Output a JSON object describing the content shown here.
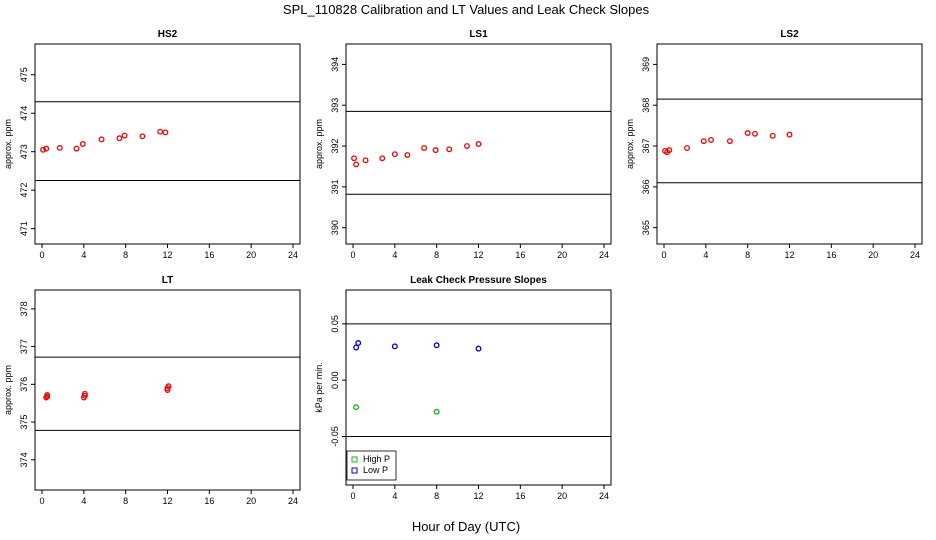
{
  "title": "SPL_110828  Calibration and LT Values and Leak Check Slopes",
  "xlabel": "Hour of Day (UTC)",
  "colors": {
    "red": "#ee0000",
    "green": "#00bb00",
    "blue": "#0000cc",
    "line": "#000000"
  },
  "chart_data": [
    {
      "type": "scatter",
      "title": "HS2",
      "ylabel": "approx. ppm",
      "xlim": [
        0,
        24
      ],
      "ylim": [
        470.6,
        475.8
      ],
      "xticks": [
        0,
        4,
        8,
        12,
        16,
        20,
        24
      ],
      "yticks": [
        471,
        472,
        473,
        474,
        475
      ],
      "hlines": [
        474.3,
        472.25
      ],
      "series": [
        {
          "color": "red",
          "x": [
            0.1,
            0.4,
            1.7,
            3.3,
            3.9,
            5.7,
            7.4,
            7.9,
            9.6,
            11.3,
            11.8
          ],
          "y": [
            473.05,
            473.08,
            473.1,
            473.08,
            473.2,
            473.32,
            473.35,
            473.42,
            473.4,
            473.52,
            473.5
          ]
        }
      ]
    },
    {
      "type": "scatter",
      "title": "LS1",
      "ylabel": "approx. ppm",
      "xlim": [
        0,
        24
      ],
      "ylim": [
        389.6,
        394.5
      ],
      "xticks": [
        0,
        4,
        8,
        12,
        16,
        20,
        24
      ],
      "yticks": [
        390,
        391,
        392,
        393,
        394
      ],
      "hlines": [
        392.85,
        390.82
      ],
      "series": [
        {
          "color": "red",
          "x": [
            0.1,
            0.3,
            1.2,
            2.8,
            4.0,
            5.2,
            6.8,
            7.9,
            9.2,
            10.9,
            12.0
          ],
          "y": [
            391.7,
            391.55,
            391.65,
            391.7,
            391.8,
            391.78,
            391.95,
            391.9,
            391.92,
            392.0,
            392.05
          ]
        }
      ]
    },
    {
      "type": "scatter",
      "title": "LS2",
      "ylabel": "approx. ppm",
      "xlim": [
        0,
        24
      ],
      "ylim": [
        364.6,
        369.5
      ],
      "xticks": [
        0,
        4,
        8,
        12,
        16,
        20,
        24
      ],
      "yticks": [
        365,
        366,
        367,
        368,
        369
      ],
      "hlines": [
        368.15,
        366.1
      ],
      "series": [
        {
          "color": "red",
          "x": [
            0.1,
            0.3,
            0.5,
            2.2,
            3.8,
            4.5,
            6.3,
            8.0,
            8.7,
            10.4,
            12.0
          ],
          "y": [
            366.88,
            366.85,
            366.9,
            366.95,
            367.12,
            367.15,
            367.12,
            367.32,
            367.3,
            367.25,
            367.28
          ]
        }
      ]
    },
    {
      "type": "scatter",
      "title": "LT",
      "ylabel": "approx. ppm",
      "xlim": [
        0,
        24
      ],
      "ylim": [
        373.2,
        378.5
      ],
      "xticks": [
        0,
        4,
        8,
        12,
        16,
        20,
        24
      ],
      "yticks": [
        374,
        375,
        376,
        377,
        378
      ],
      "hlines": [
        376.72,
        374.78
      ],
      "series": [
        {
          "color": "red",
          "x": [
            0.4,
            0.5,
            0.5,
            4.0,
            4.1,
            4.1,
            12.0,
            12.0,
            12.1
          ],
          "y": [
            375.65,
            375.68,
            375.72,
            375.65,
            375.7,
            375.75,
            375.85,
            375.9,
            375.95
          ]
        }
      ]
    },
    {
      "type": "scatter",
      "title": "Leak Check Pressure Slopes",
      "ylabel": "kPa per min.",
      "xlim": [
        0,
        24
      ],
      "ylim": [
        -0.093,
        0.08
      ],
      "xticks": [
        0,
        4,
        8,
        12,
        16,
        20,
        24
      ],
      "yticks": [
        -0.05,
        0,
        0.05
      ],
      "ytick_labels": [
        "-0.05",
        "0.00",
        "0.05"
      ],
      "hlines": [
        0.05,
        -0.05
      ],
      "legend": {
        "position": "bottom-left",
        "entries": [
          {
            "label": "High P",
            "color": "green"
          },
          {
            "label": "Low P",
            "color": "blue"
          }
        ]
      },
      "series": [
        {
          "name": "High P",
          "color": "green",
          "x": [
            0.3,
            8.0
          ],
          "y": [
            -0.024,
            -0.028
          ]
        },
        {
          "name": "Low P",
          "color": "blue",
          "x": [
            0.3,
            0.5,
            4.0,
            8.0,
            12.0
          ],
          "y": [
            0.029,
            0.033,
            0.03,
            0.031,
            0.028
          ]
        }
      ]
    }
  ]
}
